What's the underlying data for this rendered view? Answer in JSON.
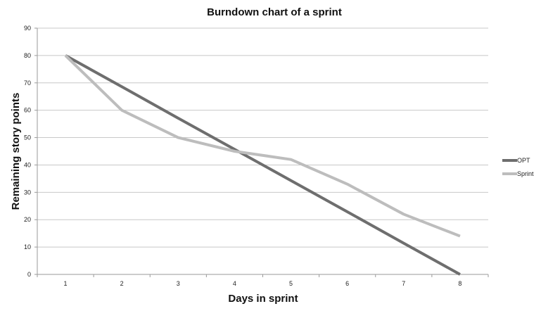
{
  "chart_data": {
    "type": "line",
    "title": "Burndown chart of a sprint",
    "xlabel": "Days in sprint",
    "ylabel": "Remaining story points",
    "x": [
      1,
      2,
      3,
      4,
      5,
      6,
      7,
      8
    ],
    "ylim": [
      0,
      90
    ],
    "yticks": [
      0,
      10,
      20,
      30,
      40,
      50,
      60,
      70,
      80,
      90
    ],
    "grid": true,
    "legend_position": "right",
    "series": [
      {
        "name": "OPT",
        "color": "#6e6e6e",
        "values": [
          80,
          68.6,
          57.1,
          45.7,
          34.3,
          22.9,
          11.4,
          0
        ]
      },
      {
        "name": "Sprint",
        "color": "#bdbdbd",
        "values": [
          80,
          60,
          50,
          45,
          42,
          33,
          22,
          14
        ]
      }
    ]
  }
}
